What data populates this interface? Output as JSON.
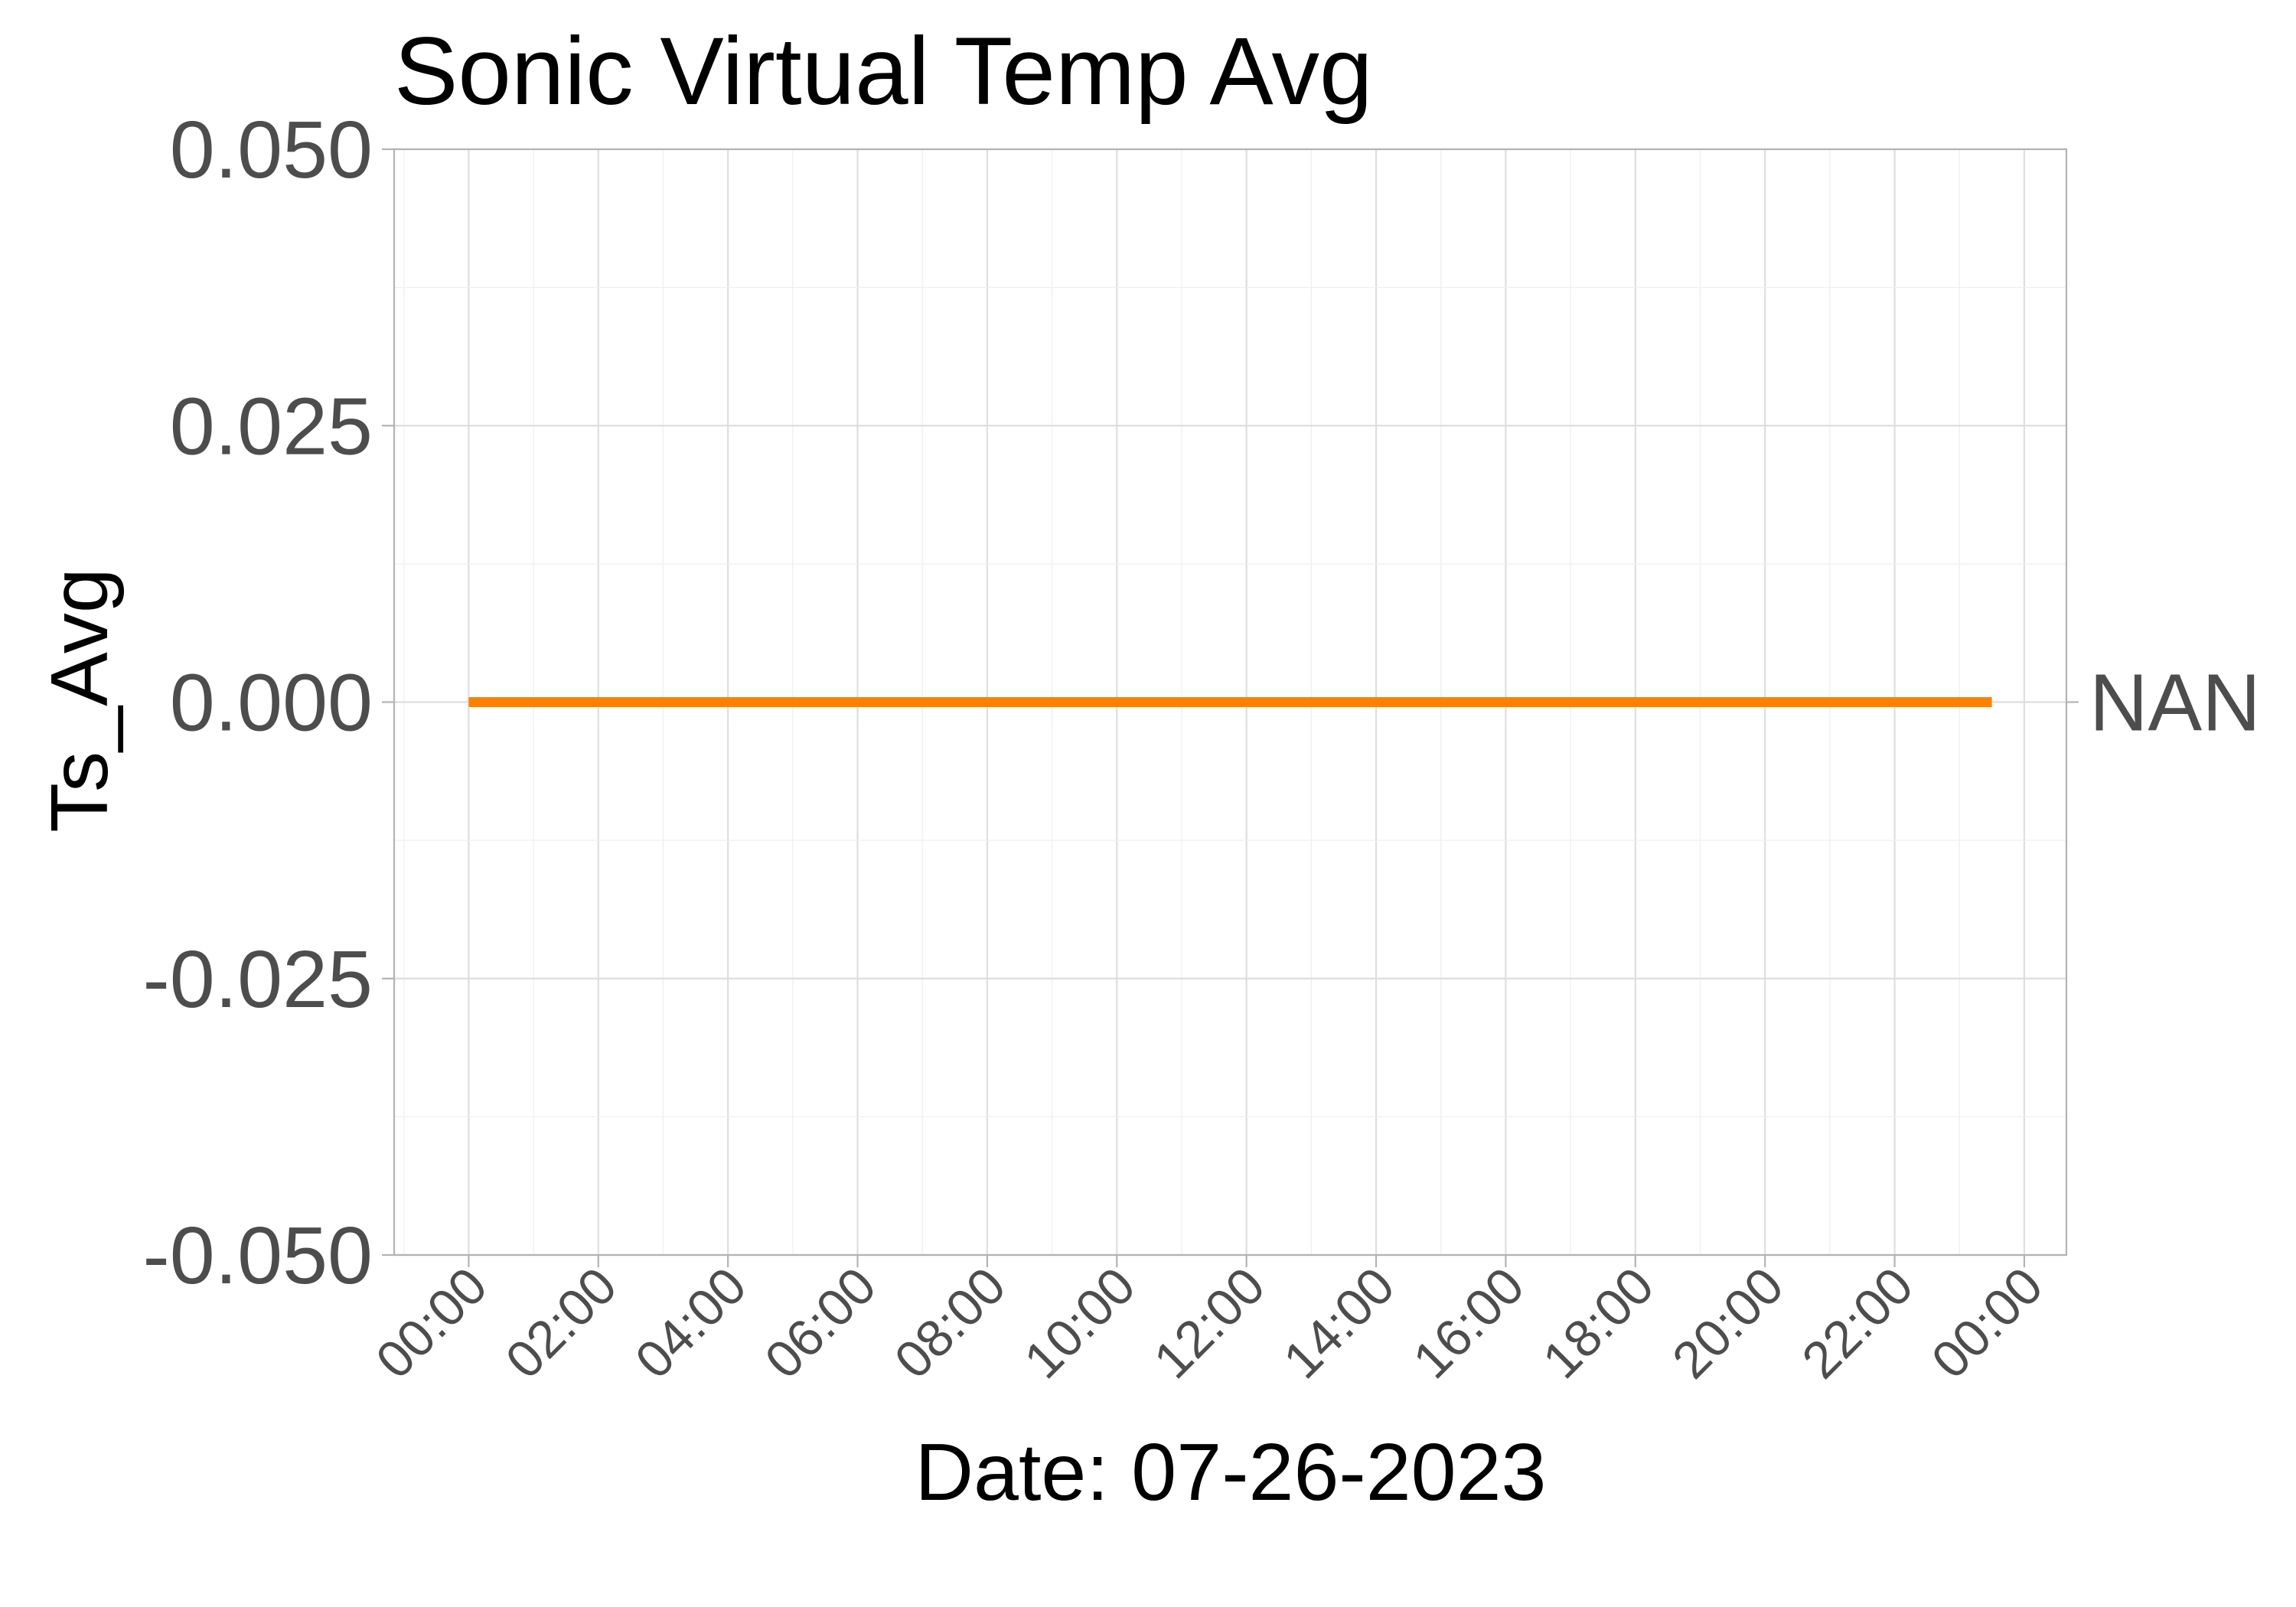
{
  "chart_data": {
    "type": "line",
    "title": "Sonic Virtual Temp Avg",
    "xlabel": "Date: 07-26-2023",
    "ylabel": "Ts_Avg",
    "x_ticks": [
      "00:00",
      "02:00",
      "04:00",
      "06:00",
      "08:00",
      "10:00",
      "12:00",
      "14:00",
      "16:00",
      "18:00",
      "20:00",
      "22:00",
      "00:00"
    ],
    "y_ticks": [
      "0.050",
      "0.025",
      "0.000",
      "-0.025",
      "-0.050"
    ],
    "ylim": [
      -0.05,
      0.05
    ],
    "xlim_hours": [
      -1.15,
      24.65
    ],
    "grid": true,
    "series": [
      {
        "label": "NAN",
        "color": "#ff7f00",
        "x_hours": [
          0,
          23.5
        ],
        "values": [
          0,
          0
        ]
      }
    ]
  }
}
